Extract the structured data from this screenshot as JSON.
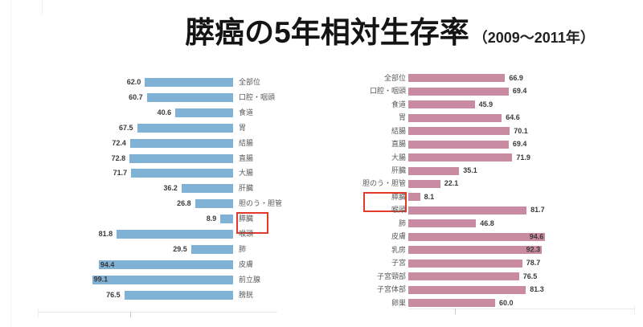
{
  "title": "膵癌の5年相対生存率",
  "subtitle": "（2009～2011年）",
  "highlight_category": "膵臓",
  "colors": {
    "male_bar": "#7fb2d5",
    "female_bar": "#c98ba1",
    "highlight_box": "#e23a28",
    "value_text": "#3a3a3a",
    "category_text": "#5a5a5a",
    "axis_line": "#e9e9e9"
  },
  "chart_data": [
    {
      "type": "bar",
      "panel": "left",
      "orientation": "horizontal",
      "direction": "right-to-left",
      "bar_color": "#7fb2d5",
      "xlim": [
        0,
        100
      ],
      "grid": false,
      "value_labels": true,
      "highlight": "膵臓",
      "categories": [
        "全部位",
        "口腔・咽頭",
        "食道",
        "胃",
        "結腸",
        "直腸",
        "大腸",
        "肝臓",
        "胆のう・胆管",
        "膵臓",
        "喉頭",
        "肺",
        "皮膚",
        "前立腺",
        "膀胱"
      ],
      "values": [
        62.0,
        60.7,
        40.6,
        67.5,
        72.4,
        72.8,
        71.7,
        36.2,
        26.8,
        8.9,
        81.8,
        29.5,
        94.4,
        99.1,
        76.5
      ]
    },
    {
      "type": "bar",
      "panel": "right",
      "orientation": "horizontal",
      "direction": "left-to-right",
      "bar_color": "#c98ba1",
      "xlim": [
        0,
        100
      ],
      "grid": false,
      "value_labels": true,
      "highlight": "膵臓",
      "categories": [
        "全部位",
        "口腔・咽頭",
        "食道",
        "胃",
        "結腸",
        "直腸",
        "大腸",
        "肝臓",
        "胆のう・胆管",
        "膵臓",
        "喉頭",
        "肺",
        "皮膚",
        "乳房",
        "子宮",
        "子宮頸部",
        "子宮体部",
        "卵巣"
      ],
      "values": [
        66.9,
        69.4,
        45.9,
        64.6,
        70.1,
        69.4,
        71.9,
        35.1,
        22.1,
        8.1,
        81.7,
        46.8,
        94.6,
        92.3,
        78.7,
        76.5,
        81.3,
        60.0
      ]
    }
  ]
}
